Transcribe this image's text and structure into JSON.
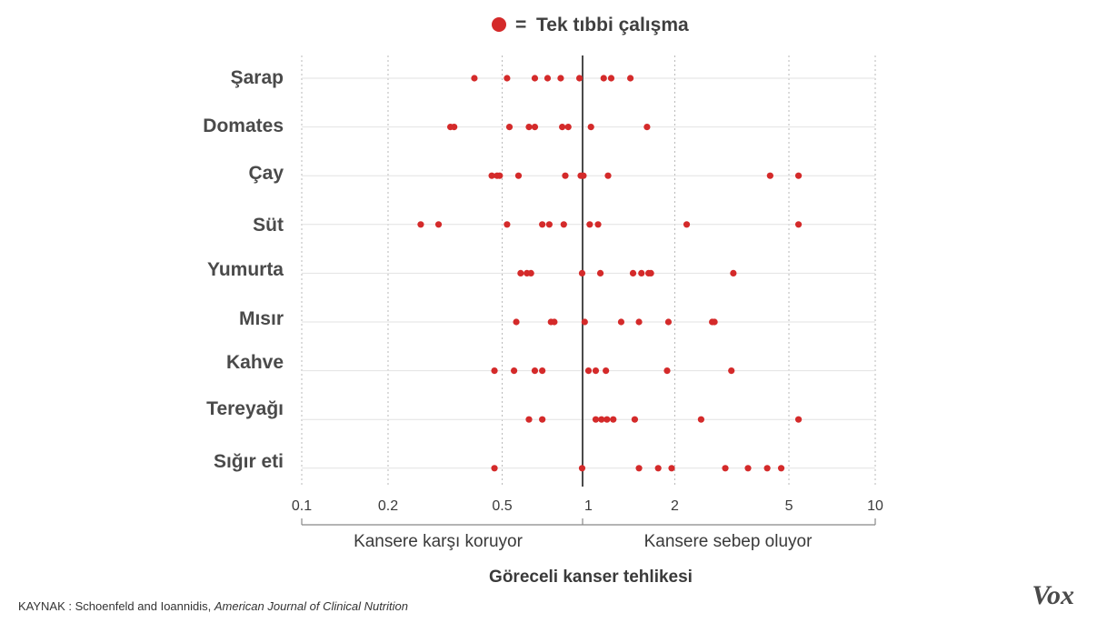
{
  "chart_data": {
    "type": "scatter",
    "legend": {
      "symbol_color": "#d42a2a",
      "equals": "=",
      "label": "Tek tıbbi çalışma"
    },
    "categories": [
      "Şarap",
      "Domates",
      "Çay",
      "Süt",
      "Yumurta",
      "Mısır",
      "Kahve",
      "Tereyağı",
      "Sığır eti"
    ],
    "x_scale": "log",
    "xlim": [
      0.1,
      10
    ],
    "x_ticks": [
      0.1,
      0.2,
      0.5,
      1,
      2,
      5,
      10
    ],
    "x_tick_labels": [
      "0.1",
      "0.2",
      "0.5",
      "1",
      "2",
      "5",
      "10"
    ],
    "reference_line": 1,
    "grid": true,
    "points": [
      [
        0.4,
        0.52,
        0.65,
        0.72,
        0.8,
        0.93,
        1.13,
        1.2,
        1.4
      ],
      [
        0.33,
        0.34,
        0.53,
        0.62,
        0.65,
        0.81,
        0.85,
        1.02,
        1.6
      ],
      [
        0.46,
        0.48,
        0.49,
        0.57,
        0.83,
        0.94,
        0.96,
        1.17,
        4.3,
        5.4
      ],
      [
        0.26,
        0.3,
        0.52,
        0.69,
        0.73,
        0.82,
        1.01,
        1.08,
        2.2,
        5.4
      ],
      [
        0.58,
        0.61,
        0.63,
        0.95,
        1.1,
        1.43,
        1.53,
        1.62,
        1.65,
        3.2
      ],
      [
        0.56,
        0.74,
        0.76,
        0.97,
        1.3,
        1.5,
        1.9,
        2.7,
        2.75
      ],
      [
        0.47,
        0.55,
        0.65,
        0.69,
        1.0,
        1.06,
        1.15,
        1.88,
        3.15
      ],
      [
        0.62,
        0.69,
        1.06,
        1.11,
        1.16,
        1.22,
        1.45,
        2.47,
        5.4
      ],
      [
        0.47,
        0.95,
        1.5,
        1.75,
        1.95,
        3.0,
        3.6,
        4.2,
        4.7
      ]
    ],
    "series_color": "#d42a2a",
    "regions": {
      "left": "Kansere karşı koruyor",
      "right": "Kansere sebep oluyor"
    },
    "xlabel": "Göreceli kanser tehlikesi"
  },
  "source": {
    "prefix": "KAYNAK : Schoenfeld and Ioannidis, ",
    "journal": "American Journal of Clinical Nutrition"
  },
  "logo": "Vox"
}
